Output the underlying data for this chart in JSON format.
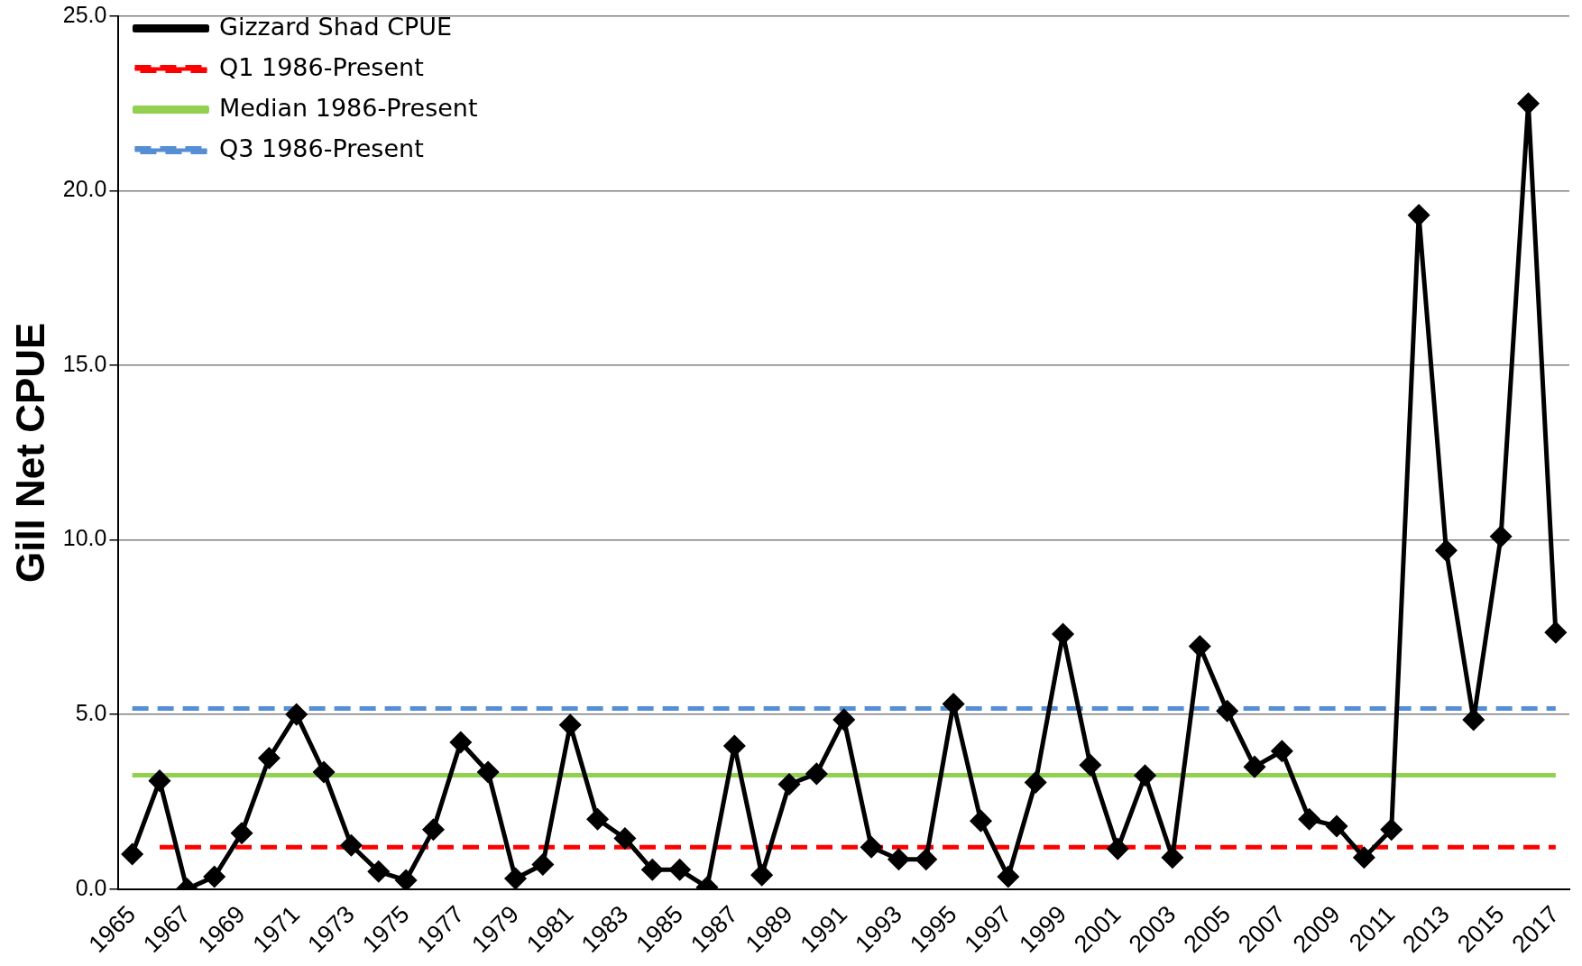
{
  "chart_data": {
    "type": "line",
    "ylabel": "Gill Net CPUE",
    "categories": [
      "1965",
      null,
      "1967",
      null,
      "1969",
      null,
      "1971",
      null,
      "1973",
      null,
      "1975",
      null,
      "1977",
      null,
      "1979",
      null,
      "1981",
      null,
      "1983",
      null,
      "1985",
      null,
      "1987",
      null,
      "1989",
      null,
      "1991",
      null,
      "1993",
      null,
      "1995",
      null,
      "1997",
      null,
      "1999",
      null,
      "2001",
      null,
      "2003",
      null,
      "2005",
      null,
      "2007",
      null,
      "2009",
      null,
      "2011",
      null,
      "2013",
      null,
      "2015",
      null,
      "2017"
    ],
    "series": [
      {
        "name": "Gizzard Shad CPUE",
        "color": "#000000",
        "values": [
          1.0,
          3.1,
          0.0,
          0.35,
          1.6,
          3.75,
          5.0,
          3.35,
          1.25,
          0.5,
          0.25,
          1.7,
          4.2,
          3.35,
          0.3,
          0.7,
          4.7,
          2.0,
          1.45,
          0.55,
          0.55,
          0.05,
          4.1,
          0.4,
          3.0,
          3.3,
          4.85,
          1.2,
          0.85,
          0.85,
          5.3,
          1.95,
          0.35,
          3.05,
          7.3,
          3.55,
          1.15,
          3.25,
          0.9,
          6.95,
          5.1,
          3.5,
          3.95,
          2.0,
          1.8,
          0.9,
          1.7,
          19.3,
          9.7,
          4.85,
          10.1,
          22.5,
          7.35
        ]
      },
      {
        "name": "Q1 1986-Present",
        "color": "#ff0000",
        "line_style": "dashed",
        "marker": "none",
        "values": [
          null,
          1.2,
          1.2,
          1.2,
          1.2,
          1.2,
          1.2,
          1.2,
          1.2,
          1.2,
          1.2,
          1.2,
          1.2,
          1.2,
          1.2,
          1.2,
          1.2,
          1.2,
          1.2,
          1.2,
          1.2,
          1.2,
          1.2,
          1.2,
          1.2,
          1.2,
          1.2,
          null,
          1.2,
          1.2,
          1.2,
          1.2,
          1.2,
          1.2,
          1.2,
          1.2,
          1.2,
          1.2,
          1.2,
          1.2,
          1.2,
          1.2,
          1.2,
          1.2,
          1.2,
          1.2,
          1.2,
          1.2,
          1.2,
          1.2,
          1.2,
          1.2,
          1.2
        ]
      },
      {
        "name": "Median 1986-Present",
        "color": "#92d050",
        "line_style": "solid",
        "marker": "none",
        "values": [
          3.26,
          null,
          3.26,
          3.26,
          3.26,
          3.26,
          3.26,
          null,
          3.26,
          3.26,
          3.26,
          3.26,
          3.26,
          null,
          3.26,
          3.26,
          3.26,
          3.26,
          3.26,
          3.26,
          3.26,
          3.26,
          3.26,
          3.26,
          3.26,
          null,
          3.26,
          3.26,
          3.26,
          3.26,
          3.26,
          3.26,
          3.26,
          3.26,
          3.26,
          3.26,
          3.26,
          null,
          3.26,
          3.26,
          3.26,
          3.26,
          3.26,
          3.26,
          3.26,
          3.26,
          3.26,
          3.26,
          3.26,
          3.26,
          3.26,
          3.26,
          3.26
        ]
      },
      {
        "name": "Q3 1986-Present",
        "color": "#558ed5",
        "line_style": "dashed",
        "marker": "none",
        "values": [
          5.17,
          5.17,
          5.17,
          5.17,
          5.17,
          5.17,
          null,
          5.17,
          5.17,
          5.17,
          5.17,
          5.17,
          5.17,
          5.17,
          5.17,
          5.17,
          5.17,
          5.17,
          5.17,
          5.17,
          5.17,
          5.17,
          5.17,
          5.17,
          5.17,
          5.17,
          5.17,
          5.17,
          5.17,
          5.17,
          null,
          5.17,
          5.17,
          5.17,
          5.17,
          5.17,
          5.17,
          5.17,
          5.17,
          5.17,
          5.17,
          5.17,
          5.17,
          5.17,
          5.17,
          5.17,
          5.17,
          5.17,
          5.17,
          5.17,
          5.17,
          5.17,
          5.17
        ]
      }
    ],
    "ylim": [
      0,
      25
    ],
    "yticks": [
      {
        "value": 0,
        "label": "0.0"
      },
      {
        "value": 5,
        "label": "5.0"
      },
      {
        "value": 10,
        "label": "10.0"
      },
      {
        "value": 15,
        "label": "15.0"
      },
      {
        "value": 20,
        "label": "20.0"
      },
      {
        "value": 25,
        "label": "25.0"
      }
    ],
    "grid": "y",
    "legend": "top left",
    "marker": "diamond",
    "line_style": "solid"
  }
}
